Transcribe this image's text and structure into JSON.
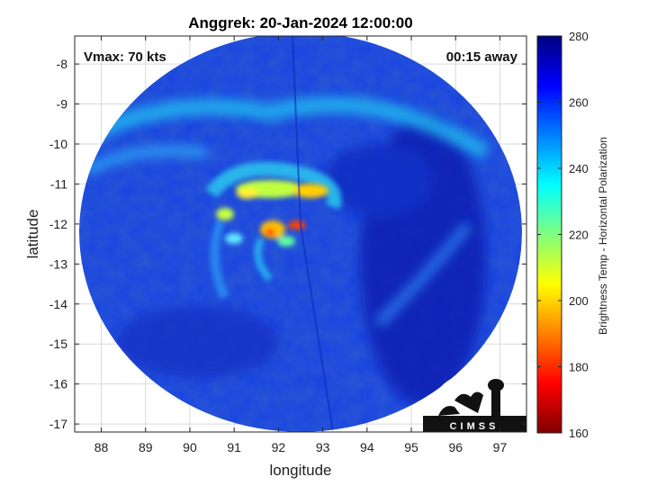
{
  "title": "Anggrek: 20-Jan-2024 12:00:00",
  "vmax_label": "Vmax: 70 kts",
  "time_offset_label": "00:15 away",
  "x_axis": {
    "label": "longitude",
    "range": [
      87.4,
      97.6
    ],
    "ticks": [
      88,
      89,
      90,
      91,
      92,
      93,
      94,
      95,
      96,
      97
    ]
  },
  "y_axis": {
    "label": "latitude",
    "range": [
      -17.2,
      -7.3
    ],
    "ticks": [
      -8,
      -9,
      -10,
      -11,
      -12,
      -13,
      -14,
      -15,
      -16,
      -17
    ]
  },
  "colorbar": {
    "label": "Brightness Temp - Horizontal Polarization",
    "range": [
      160,
      280
    ],
    "ticks": [
      280,
      260,
      240,
      220,
      200,
      180,
      160
    ],
    "colormap": "jet"
  },
  "storm_center": {
    "lon": 92.5,
    "lat": -12.0
  },
  "logo_text": "CIMSS",
  "grid": true
}
